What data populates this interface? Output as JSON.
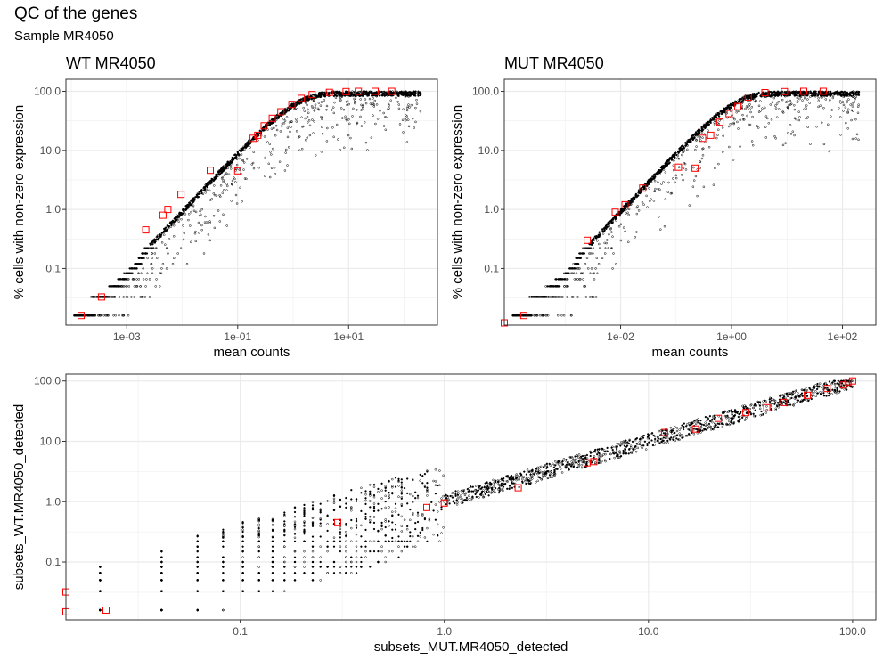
{
  "title": "QC of the genes",
  "subtitle": "Sample MR4050",
  "chart_data": [
    {
      "type": "scatter",
      "panel_title": "WT MR4050",
      "xlabel": "mean counts",
      "ylabel": "% cells with non-zero expression",
      "x_scale": "log10",
      "y_scale": "log10",
      "xlim": [
        8e-05,
        400
      ],
      "ylim": [
        0.011,
        160
      ],
      "x_ticks": [
        0.001,
        0.1,
        10
      ],
      "x_tick_labels": [
        "1e-03",
        "1e-01",
        "1e+01"
      ],
      "y_ticks": [
        0.1,
        1,
        10,
        100
      ],
      "y_tick_labels": [
        "0.1",
        "1.0",
        "10.0",
        "100.0"
      ],
      "grid": true,
      "trend": "percent ≈ 100·(1 − e^(−mean counts)), with a lower tail of genes falling below the curve",
      "highlighted_points": {
        "color": "#ff0000",
        "marker": "open-square",
        "x": [
          0.00015,
          0.00035,
          0.0022,
          0.0045,
          0.0055,
          0.0095,
          0.032,
          0.1,
          0.19,
          0.23,
          0.3,
          0.42,
          0.6,
          0.95,
          1.4,
          2.2,
          4.5,
          9,
          15,
          30,
          60
        ],
        "y": [
          0.016,
          0.033,
          0.45,
          0.8,
          1.0,
          1.8,
          4.6,
          4.5,
          16,
          18,
          26,
          35,
          45,
          60,
          76,
          88,
          96,
          99,
          100,
          100,
          100
        ]
      },
      "grey_points_color": "#000000"
    },
    {
      "type": "scatter",
      "panel_title": "MUT MR4050",
      "xlabel": "mean counts",
      "ylabel": "% cells with non-zero expression",
      "x_scale": "log10",
      "y_scale": "log10",
      "xlim": [
        8e-05,
        400
      ],
      "ylim": [
        0.011,
        160
      ],
      "x_ticks": [
        0.01,
        1,
        100
      ],
      "x_tick_labels": [
        "1e-02",
        "1e+00",
        "1e+02"
      ],
      "y_ticks": [
        0.1,
        1,
        10,
        100
      ],
      "y_tick_labels": [
        "0.1",
        "1.0",
        "10.0",
        "100.0"
      ],
      "grid": true,
      "trend": "percent ≈ 100·(1 − e^(−mean counts)), with a lower tail of genes falling below the curve",
      "highlighted_points": {
        "color": "#ff0000",
        "marker": "open-square",
        "x": [
          8e-05,
          0.00018,
          0.0025,
          0.008,
          0.012,
          0.025,
          0.11,
          0.22,
          0.3,
          0.42,
          0.62,
          0.9,
          1.3,
          2.0,
          4,
          9,
          20,
          45
        ],
        "y": [
          0.012,
          0.016,
          0.3,
          0.9,
          1.2,
          2.3,
          5.2,
          5.0,
          16,
          18,
          30,
          42,
          55,
          80,
          95,
          99,
          100,
          100
        ]
      },
      "grey_points_color": "#000000"
    },
    {
      "type": "scatter",
      "xlabel": "subsets_MUT.MR4050_detected",
      "ylabel": "subsets_WT.MR4050_detected",
      "x_scale": "log10",
      "y_scale": "log10",
      "xlim": [
        0.014,
        130
      ],
      "ylim": [
        0.011,
        130
      ],
      "x_ticks": [
        0.1,
        1,
        10,
        100
      ],
      "x_tick_labels": [
        "0.1",
        "1.0",
        "10.0",
        "100.0"
      ],
      "y_ticks": [
        0.1,
        1,
        10,
        100
      ],
      "y_tick_labels": [
        "0.1",
        "1.0",
        "10.0",
        "100.0"
      ],
      "grid": true,
      "trend": "points lie along y ≈ x; below ~1% they form discrete vertical columns",
      "highlighted_points": {
        "color": "#ff0000",
        "marker": "open-square",
        "x": [
          0.014,
          0.014,
          0.022,
          0.3,
          0.82,
          1.0,
          2.3,
          5.0,
          5.4,
          12,
          17,
          22,
          30,
          38,
          46,
          60,
          75,
          90,
          95,
          100
        ],
        "y": [
          0.015,
          0.032,
          0.016,
          0.45,
          0.8,
          0.95,
          1.7,
          4.4,
          4.6,
          14,
          16,
          24,
          30,
          36,
          44,
          58,
          75,
          86,
          95,
          100
        ]
      },
      "grey_points_color": "#000000"
    }
  ]
}
